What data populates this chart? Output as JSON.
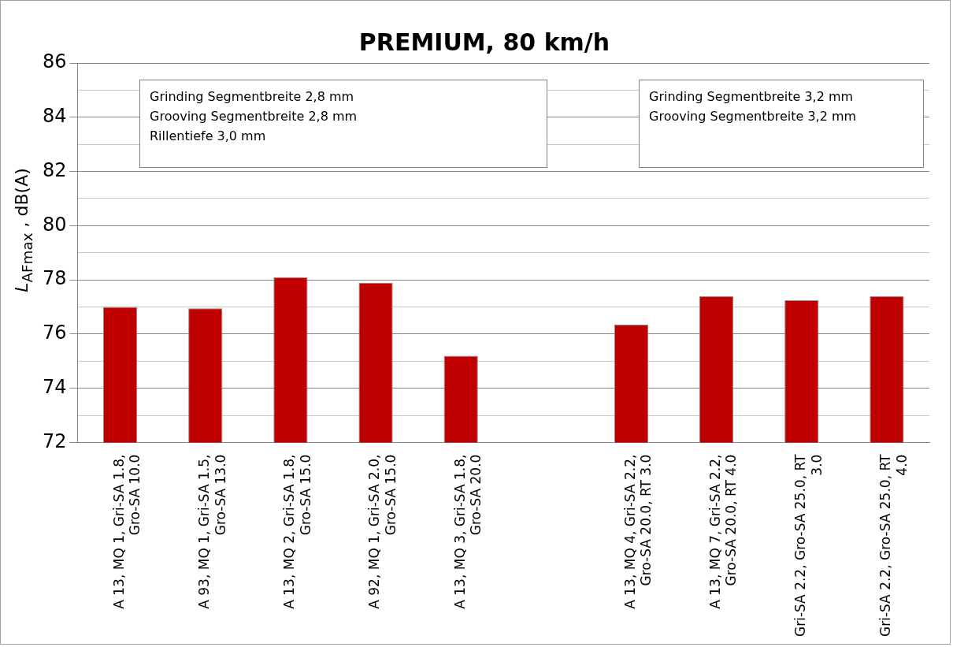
{
  "chart_data": {
    "type": "bar",
    "title": "PREMIUM, 80 km/h",
    "ylabel": "L$_{AFmax}$ , dB(A)",
    "categories": [
      "A 13, MQ 1, Gri-SA 1.8, Gro-SA 10.0",
      "A 93, MQ 1, Gri-SA 1.5, Gro-SA 13.0",
      "A 13, MQ 2, Gri-SA 1.8, Gro-SA 15.0",
      "A 92, MQ 1, Gri-SA 2.0, Gro-SA 15.0",
      "A 13, MQ 3, Gri-SA 1.8, Gro-SA 20.0",
      null,
      "A 13, MQ 4, Gri-SA 2.2, Gro-SA 20.0, RT 3.0",
      "A 13, MQ 7, Gri-SA 2.2, Gro-SA 20.0, RT 4.0",
      "Gri-SA 2.2, Gro-SA 25.0, RT 3.0",
      "Gri-SA 2.2, Gro-SA 25.0, RT 4.0"
    ],
    "values": [
      77.0,
      76.95,
      78.1,
      77.9,
      75.2,
      null,
      76.35,
      77.4,
      77.25,
      77.4
    ],
    "color": "#c00000",
    "ylim": [
      72,
      86
    ],
    "yticks": [
      72,
      {
        "value": 73,
        "label": null
      },
      74,
      {
        "value": 75,
        "label": null
      },
      76,
      {
        "value": 77,
        "label": null
      },
      78,
      {
        "value": 79,
        "label": null
      },
      80,
      {
        "value": 81,
        "label": null
      },
      82,
      {
        "value": 83,
        "label": null
      },
      84,
      {
        "value": 85,
        "label": null
      },
      86
    ],
    "grid": "y",
    "annotations": [
      "Grinding Segmentbreite 2,8 mm\nGrooving Segmentbreite 2,8 mm\nRillentiefe 3,0 mm",
      "Grinding Segmentbreite 3,2 mm\nGrooving Segmentbreite 3,2 mm"
    ]
  }
}
